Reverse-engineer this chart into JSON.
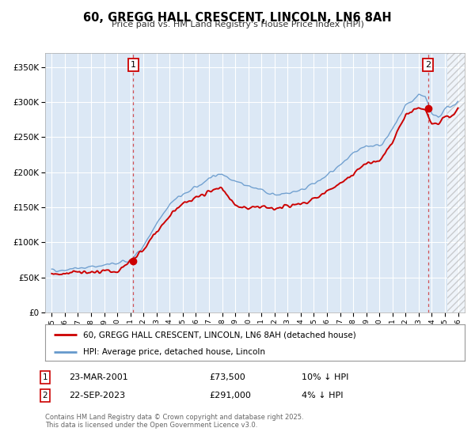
{
  "title": "60, GREGG HALL CRESCENT, LINCOLN, LN6 8AH",
  "subtitle": "Price paid vs. HM Land Registry's House Price Index (HPI)",
  "legend_label_red": "60, GREGG HALL CRESCENT, LINCOLN, LN6 8AH (detached house)",
  "legend_label_blue": "HPI: Average price, detached house, Lincoln",
  "footnote": "Contains HM Land Registry data © Crown copyright and database right 2025.\nThis data is licensed under the Open Government Licence v3.0.",
  "marker1_date": "23-MAR-2001",
  "marker1_price": "£73,500",
  "marker1_hpi": "10% ↓ HPI",
  "marker2_date": "22-SEP-2023",
  "marker2_price": "£291,000",
  "marker2_hpi": "4% ↓ HPI",
  "red_color": "#cc0000",
  "blue_color": "#6699cc",
  "marker1_x": 2001.22,
  "marker1_y": 73500,
  "marker2_x": 2023.72,
  "marker2_y": 291000,
  "ylim": [
    0,
    370000
  ],
  "xlim": [
    1994.5,
    2026.5
  ],
  "yticks": [
    0,
    50000,
    100000,
    150000,
    200000,
    250000,
    300000,
    350000
  ],
  "ytick_labels": [
    "£0",
    "£50K",
    "£100K",
    "£150K",
    "£200K",
    "£250K",
    "£300K",
    "£350K"
  ],
  "xticks": [
    1995,
    1996,
    1997,
    1998,
    1999,
    2000,
    2001,
    2002,
    2003,
    2004,
    2005,
    2006,
    2007,
    2008,
    2009,
    2010,
    2011,
    2012,
    2013,
    2014,
    2015,
    2016,
    2017,
    2018,
    2019,
    2020,
    2021,
    2022,
    2023,
    2024,
    2025,
    2026
  ],
  "plot_bg": "#dce8f5",
  "grid_color": "#ffffff",
  "hatch_start": 2025.17
}
